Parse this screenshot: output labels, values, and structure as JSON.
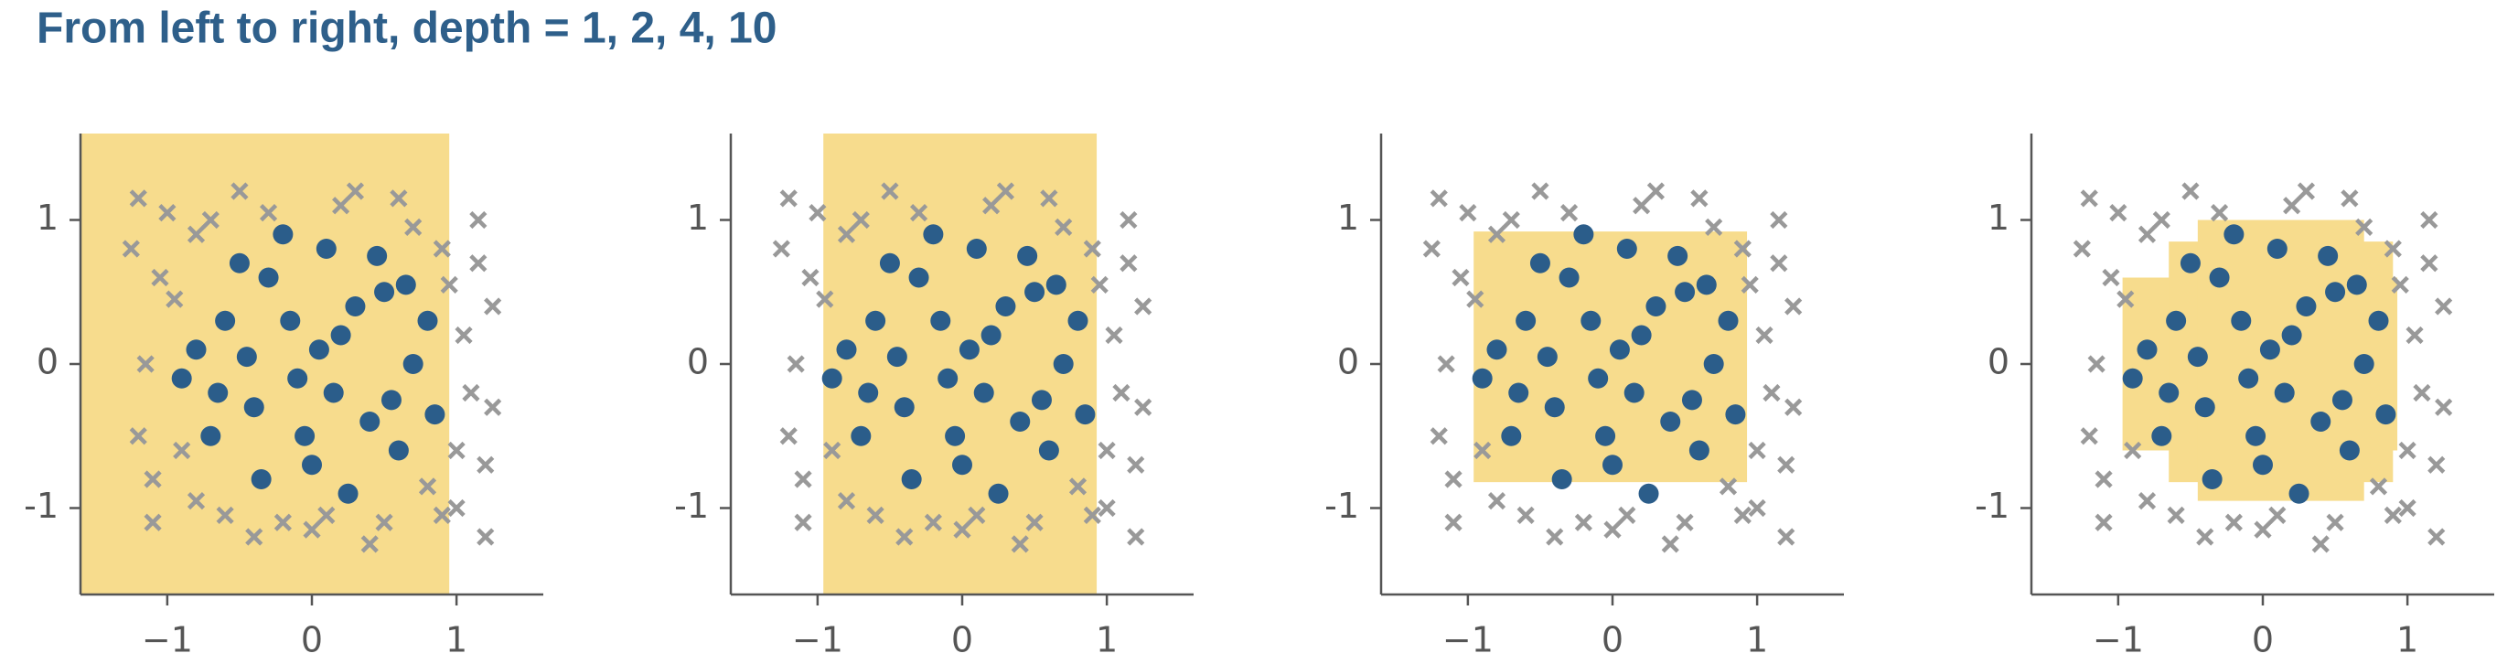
{
  "title": "From left to right, depth = 1, 2, 4, 10",
  "chart_data": [
    {
      "type": "scatter",
      "xlim": [
        -1.6,
        1.6
      ],
      "ylim": [
        -1.6,
        1.6
      ],
      "xticks": [
        {
          "value": -1,
          "label": "−1"
        },
        0,
        1
      ],
      "yticks": [
        -1,
        0,
        1
      ],
      "region_color": "#f7dc8d",
      "regions": [
        {
          "x": [
            -1.6,
            0.95
          ],
          "y": [
            -1.6,
            1.6
          ]
        }
      ],
      "series": [
        {
          "color": "#999999",
          "marker": "x",
          "x": [
            -1.2,
            -1.0,
            -0.8,
            -0.5,
            0.2,
            0.6,
            0.9,
            1.15,
            1.25,
            1.1,
            1.2,
            1.0,
            1.2,
            0.9,
            0.5,
            0.0,
            -0.4,
            -0.8,
            -1.1,
            -1.2,
            -1.15,
            -1.05,
            -0.9,
            0.3,
            0.8,
            1.05,
            -0.6,
            0.7,
            -1.25,
            1.25,
            -0.3,
            0.4,
            -0.95,
            0.95,
            -1.1,
            1.15,
            -0.7,
            0.1,
            -0.2,
            1.0
          ],
          "y": [
            1.15,
            1.05,
            0.9,
            1.2,
            1.1,
            1.15,
            0.8,
            1.0,
            0.4,
            -0.2,
            -0.7,
            -1.0,
            -1.2,
            -1.05,
            -1.1,
            -1.15,
            -1.2,
            -0.95,
            -1.1,
            -0.5,
            0.0,
            0.6,
            -0.6,
            1.2,
            -0.85,
            0.2,
            -1.05,
            0.95,
            0.8,
            -0.3,
            1.05,
            -1.25,
            0.45,
            0.55,
            -0.8,
            0.7,
            1.0,
            -1.05,
            -1.1,
            -0.6
          ]
        },
        {
          "color": "#2b5d8a",
          "marker": "circle",
          "x": [
            0.1,
            -0.3,
            0.5,
            -0.6,
            0.2,
            -0.1,
            0.7,
            -0.8,
            0.4,
            -0.4,
            0.0,
            0.3,
            -0.7,
            0.6,
            -0.2,
            0.8,
            -0.5,
            0.15,
            -0.65,
            0.45,
            -0.15,
            0.55,
            -0.35,
            0.25,
            -0.9,
            0.85,
            0.05,
            -0.45,
            0.65,
            -0.05
          ],
          "y": [
            0.8,
            0.6,
            0.5,
            0.3,
            0.2,
            -0.1,
            0.0,
            0.1,
            -0.4,
            -0.3,
            -0.7,
            0.4,
            -0.5,
            -0.6,
            0.9,
            0.3,
            0.7,
            -0.2,
            -0.2,
            0.75,
            0.3,
            -0.25,
            -0.8,
            -0.9,
            -0.1,
            -0.35,
            0.1,
            0.05,
            0.55,
            -0.5
          ]
        }
      ]
    },
    {
      "type": "scatter",
      "xlim": [
        -1.6,
        1.6
      ],
      "ylim": [
        -1.6,
        1.6
      ],
      "xticks": [
        {
          "value": -1,
          "label": "−1"
        },
        0,
        1
      ],
      "yticks": [
        -1,
        0,
        1
      ],
      "region_color": "#f7dc8d",
      "regions": [
        {
          "x": [
            -0.96,
            0.93
          ],
          "y": [
            -1.6,
            1.6
          ]
        }
      ],
      "series": [
        {
          "color": "#999999",
          "marker": "x",
          "x": [
            -1.2,
            -1.0,
            -0.8,
            -0.5,
            0.2,
            0.6,
            0.9,
            1.15,
            1.25,
            1.1,
            1.2,
            1.0,
            1.2,
            0.9,
            0.5,
            0.0,
            -0.4,
            -0.8,
            -1.1,
            -1.2,
            -1.15,
            -1.05,
            -0.9,
            0.3,
            0.8,
            1.05,
            -0.6,
            0.7,
            -1.25,
            1.25,
            -0.3,
            0.4,
            -0.95,
            0.95,
            -1.1,
            1.15,
            -0.7,
            0.1,
            -0.2,
            1.0
          ],
          "y": [
            1.15,
            1.05,
            0.9,
            1.2,
            1.1,
            1.15,
            0.8,
            1.0,
            0.4,
            -0.2,
            -0.7,
            -1.0,
            -1.2,
            -1.05,
            -1.1,
            -1.15,
            -1.2,
            -0.95,
            -1.1,
            -0.5,
            0.0,
            0.6,
            -0.6,
            1.2,
            -0.85,
            0.2,
            -1.05,
            0.95,
            0.8,
            -0.3,
            1.05,
            -1.25,
            0.45,
            0.55,
            -0.8,
            0.7,
            1.0,
            -1.05,
            -1.1,
            -0.6
          ]
        },
        {
          "color": "#2b5d8a",
          "marker": "circle",
          "x": [
            0.1,
            -0.3,
            0.5,
            -0.6,
            0.2,
            -0.1,
            0.7,
            -0.8,
            0.4,
            -0.4,
            0.0,
            0.3,
            -0.7,
            0.6,
            -0.2,
            0.8,
            -0.5,
            0.15,
            -0.65,
            0.45,
            -0.15,
            0.55,
            -0.35,
            0.25,
            -0.9,
            0.85,
            0.05,
            -0.45,
            0.65,
            -0.05
          ],
          "y": [
            0.8,
            0.6,
            0.5,
            0.3,
            0.2,
            -0.1,
            0.0,
            0.1,
            -0.4,
            -0.3,
            -0.7,
            0.4,
            -0.5,
            -0.6,
            0.9,
            0.3,
            0.7,
            -0.2,
            -0.2,
            0.75,
            0.3,
            -0.25,
            -0.8,
            -0.9,
            -0.1,
            -0.35,
            0.1,
            0.05,
            0.55,
            -0.5
          ]
        }
      ]
    },
    {
      "type": "scatter",
      "xlim": [
        -1.6,
        1.6
      ],
      "ylim": [
        -1.6,
        1.6
      ],
      "xticks": [
        {
          "value": -1,
          "label": "−1"
        },
        0,
        1
      ],
      "yticks": [
        -1,
        0,
        1
      ],
      "region_color": "#f7dc8d",
      "regions": [
        {
          "x": [
            -0.96,
            0.93
          ],
          "y": [
            -0.82,
            0.92
          ]
        }
      ],
      "series": [
        {
          "color": "#999999",
          "marker": "x",
          "x": [
            -1.2,
            -1.0,
            -0.8,
            -0.5,
            0.2,
            0.6,
            0.9,
            1.15,
            1.25,
            1.1,
            1.2,
            1.0,
            1.2,
            0.9,
            0.5,
            0.0,
            -0.4,
            -0.8,
            -1.1,
            -1.2,
            -1.15,
            -1.05,
            -0.9,
            0.3,
            0.8,
            1.05,
            -0.6,
            0.7,
            -1.25,
            1.25,
            -0.3,
            0.4,
            -0.95,
            0.95,
            -1.1,
            1.15,
            -0.7,
            0.1,
            -0.2,
            1.0
          ],
          "y": [
            1.15,
            1.05,
            0.9,
            1.2,
            1.1,
            1.15,
            0.8,
            1.0,
            0.4,
            -0.2,
            -0.7,
            -1.0,
            -1.2,
            -1.05,
            -1.1,
            -1.15,
            -1.2,
            -0.95,
            -1.1,
            -0.5,
            0.0,
            0.6,
            -0.6,
            1.2,
            -0.85,
            0.2,
            -1.05,
            0.95,
            0.8,
            -0.3,
            1.05,
            -1.25,
            0.45,
            0.55,
            -0.8,
            0.7,
            1.0,
            -1.05,
            -1.1,
            -0.6
          ]
        },
        {
          "color": "#2b5d8a",
          "marker": "circle",
          "x": [
            0.1,
            -0.3,
            0.5,
            -0.6,
            0.2,
            -0.1,
            0.7,
            -0.8,
            0.4,
            -0.4,
            0.0,
            0.3,
            -0.7,
            0.6,
            -0.2,
            0.8,
            -0.5,
            0.15,
            -0.65,
            0.45,
            -0.15,
            0.55,
            -0.35,
            0.25,
            -0.9,
            0.85,
            0.05,
            -0.45,
            0.65,
            -0.05
          ],
          "y": [
            0.8,
            0.6,
            0.5,
            0.3,
            0.2,
            -0.1,
            0.0,
            0.1,
            -0.4,
            -0.3,
            -0.7,
            0.4,
            -0.5,
            -0.6,
            0.9,
            0.3,
            0.7,
            -0.2,
            -0.2,
            0.75,
            0.3,
            -0.25,
            -0.8,
            -0.9,
            -0.1,
            -0.35,
            0.1,
            0.05,
            0.55,
            -0.5
          ]
        }
      ]
    },
    {
      "type": "scatter",
      "xlim": [
        -1.6,
        1.6
      ],
      "ylim": [
        -1.6,
        1.6
      ],
      "xticks": [
        {
          "value": -1,
          "label": "−1"
        },
        0,
        1
      ],
      "yticks": [
        -1,
        0,
        1
      ],
      "region_color": "#f7dc8d",
      "regions": [
        {
          "x": [
            -0.97,
            0.93
          ],
          "y": [
            -0.6,
            0.6
          ]
        },
        {
          "x": [
            -0.65,
            0.9
          ],
          "y": [
            -0.82,
            0.85
          ]
        },
        {
          "x": [
            -0.45,
            0.7
          ],
          "y": [
            -0.95,
            1.0
          ]
        }
      ],
      "series": [
        {
          "color": "#999999",
          "marker": "x",
          "x": [
            -1.2,
            -1.0,
            -0.8,
            -0.5,
            0.2,
            0.6,
            0.9,
            1.15,
            1.25,
            1.1,
            1.2,
            1.0,
            1.2,
            0.9,
            0.5,
            0.0,
            -0.4,
            -0.8,
            -1.1,
            -1.2,
            -1.15,
            -1.05,
            -0.9,
            0.3,
            0.8,
            1.05,
            -0.6,
            0.7,
            -1.25,
            1.25,
            -0.3,
            0.4,
            -0.95,
            0.95,
            -1.1,
            1.15,
            -0.7,
            0.1,
            -0.2,
            1.0
          ],
          "y": [
            1.15,
            1.05,
            0.9,
            1.2,
            1.1,
            1.15,
            0.8,
            1.0,
            0.4,
            -0.2,
            -0.7,
            -1.0,
            -1.2,
            -1.05,
            -1.1,
            -1.15,
            -1.2,
            -0.95,
            -1.1,
            -0.5,
            0.0,
            0.6,
            -0.6,
            1.2,
            -0.85,
            0.2,
            -1.05,
            0.95,
            0.8,
            -0.3,
            1.05,
            -1.25,
            0.45,
            0.55,
            -0.8,
            0.7,
            1.0,
            -1.05,
            -1.1,
            -0.6
          ]
        },
        {
          "color": "#2b5d8a",
          "marker": "circle",
          "x": [
            0.1,
            -0.3,
            0.5,
            -0.6,
            0.2,
            -0.1,
            0.7,
            -0.8,
            0.4,
            -0.4,
            0.0,
            0.3,
            -0.7,
            0.6,
            -0.2,
            0.8,
            -0.5,
            0.15,
            -0.65,
            0.45,
            -0.15,
            0.55,
            -0.35,
            0.25,
            -0.9,
            0.85,
            0.05,
            -0.45,
            0.65,
            -0.05
          ],
          "y": [
            0.8,
            0.6,
            0.5,
            0.3,
            0.2,
            -0.1,
            0.0,
            0.1,
            -0.4,
            -0.3,
            -0.7,
            0.4,
            -0.5,
            -0.6,
            0.9,
            0.3,
            0.7,
            -0.2,
            -0.2,
            0.75,
            0.3,
            -0.25,
            -0.8,
            -0.9,
            -0.1,
            -0.35,
            0.1,
            0.05,
            0.55,
            -0.5
          ]
        }
      ]
    }
  ]
}
